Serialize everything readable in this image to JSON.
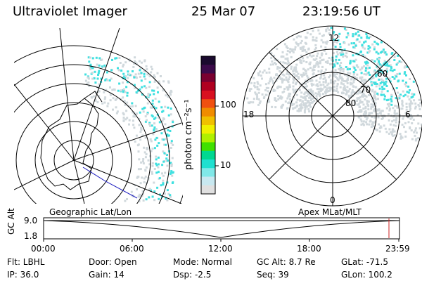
{
  "header": {
    "instrument": "Ultraviolet Imager",
    "date": "25 Mar 07",
    "time": "23:19:56 UT"
  },
  "left_map": {
    "label": "Geographic Lat/Lon"
  },
  "right_map": {
    "label": "Apex MLat/MLT",
    "mlt_top": "12",
    "mlt_bottom": "0",
    "mlt_left": "18",
    "mlt_right": "6",
    "lat_60": "60",
    "lat_70": "70",
    "lat_80": "80"
  },
  "colorbar": {
    "unit_label": "photon cm⁻²s⁻¹",
    "ticks": [
      "100",
      "10"
    ],
    "colors": [
      "#1a0a2e",
      "#3b0a4a",
      "#7a0030",
      "#b00020",
      "#d81020",
      "#f05010",
      "#f08c00",
      "#f0c000",
      "#f0f000",
      "#b0f000",
      "#40e000",
      "#00d890",
      "#20e0d0",
      "#80e8e8",
      "#c8e8f0",
      "#e0e0e0"
    ]
  },
  "timeline": {
    "axis_label": "GC Alt",
    "y_high": "9.0",
    "y_low": "1.8",
    "x_ticks": [
      "00:00",
      "06:00",
      "12:00",
      "18:00",
      "23:59"
    ]
  },
  "info": {
    "flt_label": "Flt: LBHL",
    "ip_label": "IP: 36.0",
    "door_label": "Door: Open",
    "gain_label": "Gain: 14",
    "mode_label": "Mode: Normal",
    "dsp_label": "Dsp:    -2.5",
    "gcalt_label": "GC Alt: 8.7 Re",
    "seq_label": "Seq: 39",
    "glat_label": "GLat: -71.5",
    "glon_label": "GLon: 100.2"
  },
  "colors": {
    "aurora_cyan": "#40e0e0",
    "aurora_gray": "#d0d8dc",
    "timeline_marker": "#cc2020",
    "coast_blue": "#2020c0"
  }
}
